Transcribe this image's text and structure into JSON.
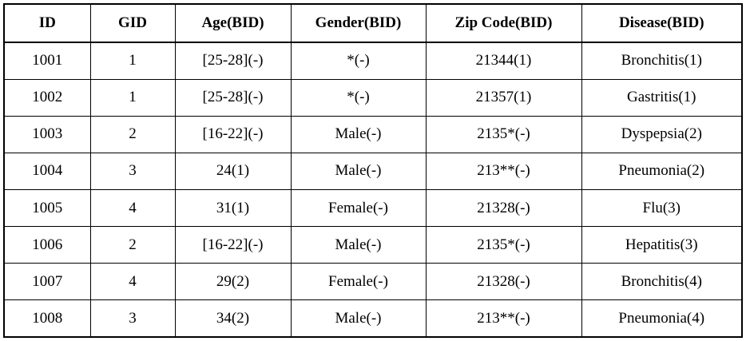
{
  "table": {
    "headers": [
      "ID",
      "GID",
      "Age(BID)",
      "Gender(BID)",
      "Zip Code(BID)",
      "Disease(BID)"
    ],
    "rows": [
      [
        "1001",
        "1",
        "[25-28](-)",
        "*(-)",
        "21344(1)",
        "Bronchitis(1)"
      ],
      [
        "1002",
        "1",
        "[25-28](-)",
        "*(-)",
        "21357(1)",
        "Gastritis(1)"
      ],
      [
        "1003",
        "2",
        "[16-22](-)",
        "Male(-)",
        "2135*(-)",
        "Dyspepsia(2)"
      ],
      [
        "1004",
        "3",
        "24(1)",
        "Male(-)",
        "213**(-)",
        "Pneumonia(2)"
      ],
      [
        "1005",
        "4",
        "31(1)",
        "Female(-)",
        "21328(-)",
        "Flu(3)"
      ],
      [
        "1006",
        "2",
        "[16-22](-)",
        "Male(-)",
        "2135*(-)",
        "Hepatitis(3)"
      ],
      [
        "1007",
        "4",
        "29(2)",
        "Female(-)",
        "21328(-)",
        "Bronchitis(4)"
      ],
      [
        "1008",
        "3",
        "34(2)",
        "Male(-)",
        "213**(-)",
        "Pneumonia(4)"
      ]
    ]
  }
}
